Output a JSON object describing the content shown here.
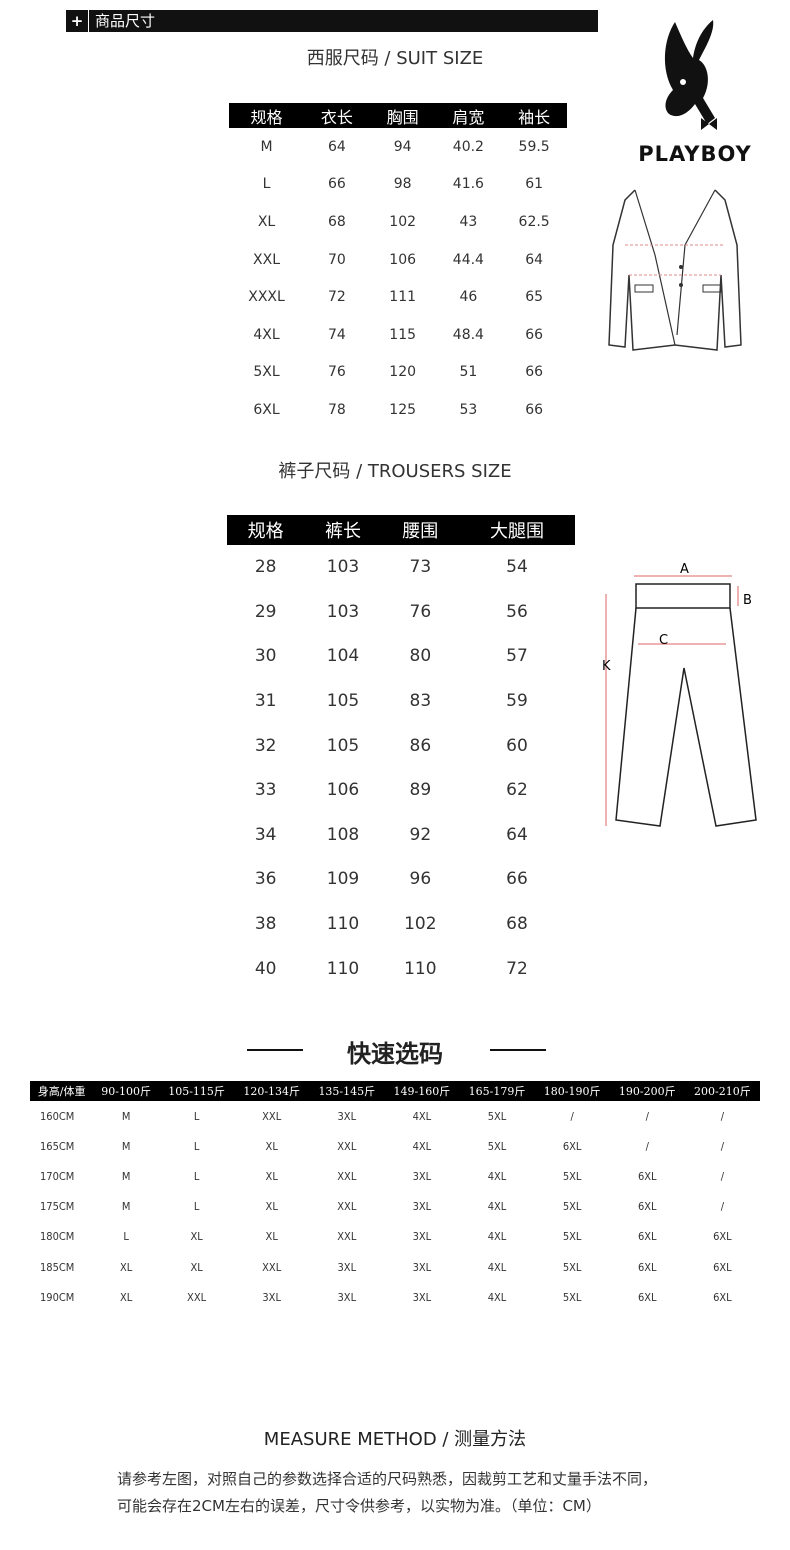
{
  "header": {
    "plus_icon": "+",
    "label": "商品尺寸"
  },
  "logo": {
    "text": "PLAYBOY",
    "icon": "bunny-logo-icon"
  },
  "suit": {
    "title": "西服尺码 / SUIT SIZE",
    "columns": [
      "规格",
      "衣长",
      "胸围",
      "肩宽",
      "袖长"
    ],
    "rows": [
      [
        "M",
        "64",
        "94",
        "40.2",
        "59.5"
      ],
      [
        "L",
        "66",
        "98",
        "41.6",
        "61"
      ],
      [
        "XL",
        "68",
        "102",
        "43",
        "62.5"
      ],
      [
        "XXL",
        "70",
        "106",
        "44.4",
        "64"
      ],
      [
        "XXXL",
        "72",
        "111",
        "46",
        "65"
      ],
      [
        "4XL",
        "74",
        "115",
        "48.4",
        "66"
      ],
      [
        "5XL",
        "76",
        "120",
        "51",
        "66"
      ],
      [
        "6XL",
        "78",
        "125",
        "53",
        "66"
      ]
    ]
  },
  "trousers": {
    "title": "裤子尺码 / TROUSERS SIZE",
    "columns": [
      "规格",
      "裤长",
      "腰围",
      "大腿围"
    ],
    "rows": [
      [
        "28",
        "103",
        "73",
        "54"
      ],
      [
        "29",
        "103",
        "76",
        "56"
      ],
      [
        "30",
        "104",
        "80",
        "57"
      ],
      [
        "31",
        "105",
        "83",
        "59"
      ],
      [
        "32",
        "105",
        "86",
        "60"
      ],
      [
        "33",
        "106",
        "89",
        "62"
      ],
      [
        "34",
        "108",
        "92",
        "64"
      ],
      [
        "36",
        "109",
        "96",
        "66"
      ],
      [
        "38",
        "110",
        "102",
        "68"
      ],
      [
        "40",
        "110",
        "110",
        "72"
      ]
    ],
    "diagram_labels": {
      "a": "A",
      "b": "B",
      "c": "C",
      "k": "K"
    }
  },
  "quick": {
    "title": "快速选码",
    "columns": [
      "身高/体重",
      "90-100斤",
      "105-115斤",
      "120-134斤",
      "135-145斤",
      "149-160斤",
      "165-179斤",
      "180-190斤",
      "190-200斤",
      "200-210斤"
    ],
    "rows": [
      [
        "160CM",
        "M",
        "L",
        "XXL",
        "3XL",
        "4XL",
        "5XL",
        "/",
        "/",
        "/"
      ],
      [
        "165CM",
        "M",
        "L",
        "XL",
        "XXL",
        "4XL",
        "5XL",
        "6XL",
        "/",
        "/"
      ],
      [
        "170CM",
        "M",
        "L",
        "XL",
        "XXL",
        "3XL",
        "4XL",
        "5XL",
        "6XL",
        "/"
      ],
      [
        "175CM",
        "M",
        "L",
        "XL",
        "XXL",
        "3XL",
        "4XL",
        "5XL",
        "6XL",
        "/"
      ],
      [
        "180CM",
        "L",
        "XL",
        "XL",
        "XXL",
        "3XL",
        "4XL",
        "5XL",
        "6XL",
        "6XL"
      ],
      [
        "185CM",
        "XL",
        "XL",
        "XXL",
        "3XL",
        "3XL",
        "4XL",
        "5XL",
        "6XL",
        "6XL"
      ],
      [
        "190CM",
        "XL",
        "XXL",
        "3XL",
        "3XL",
        "3XL",
        "4XL",
        "5XL",
        "6XL",
        "6XL"
      ]
    ]
  },
  "measure": {
    "title": "MEASURE METHOD / 测量方法",
    "lines": [
      "请参考左图，对照自己的参数选择合适的尺码熟悉，因裁剪工艺和丈量手法不同，",
      "可能会存在2CM左右的误差，尺寸令供参考，以实物为准。（单位：CM）"
    ]
  }
}
